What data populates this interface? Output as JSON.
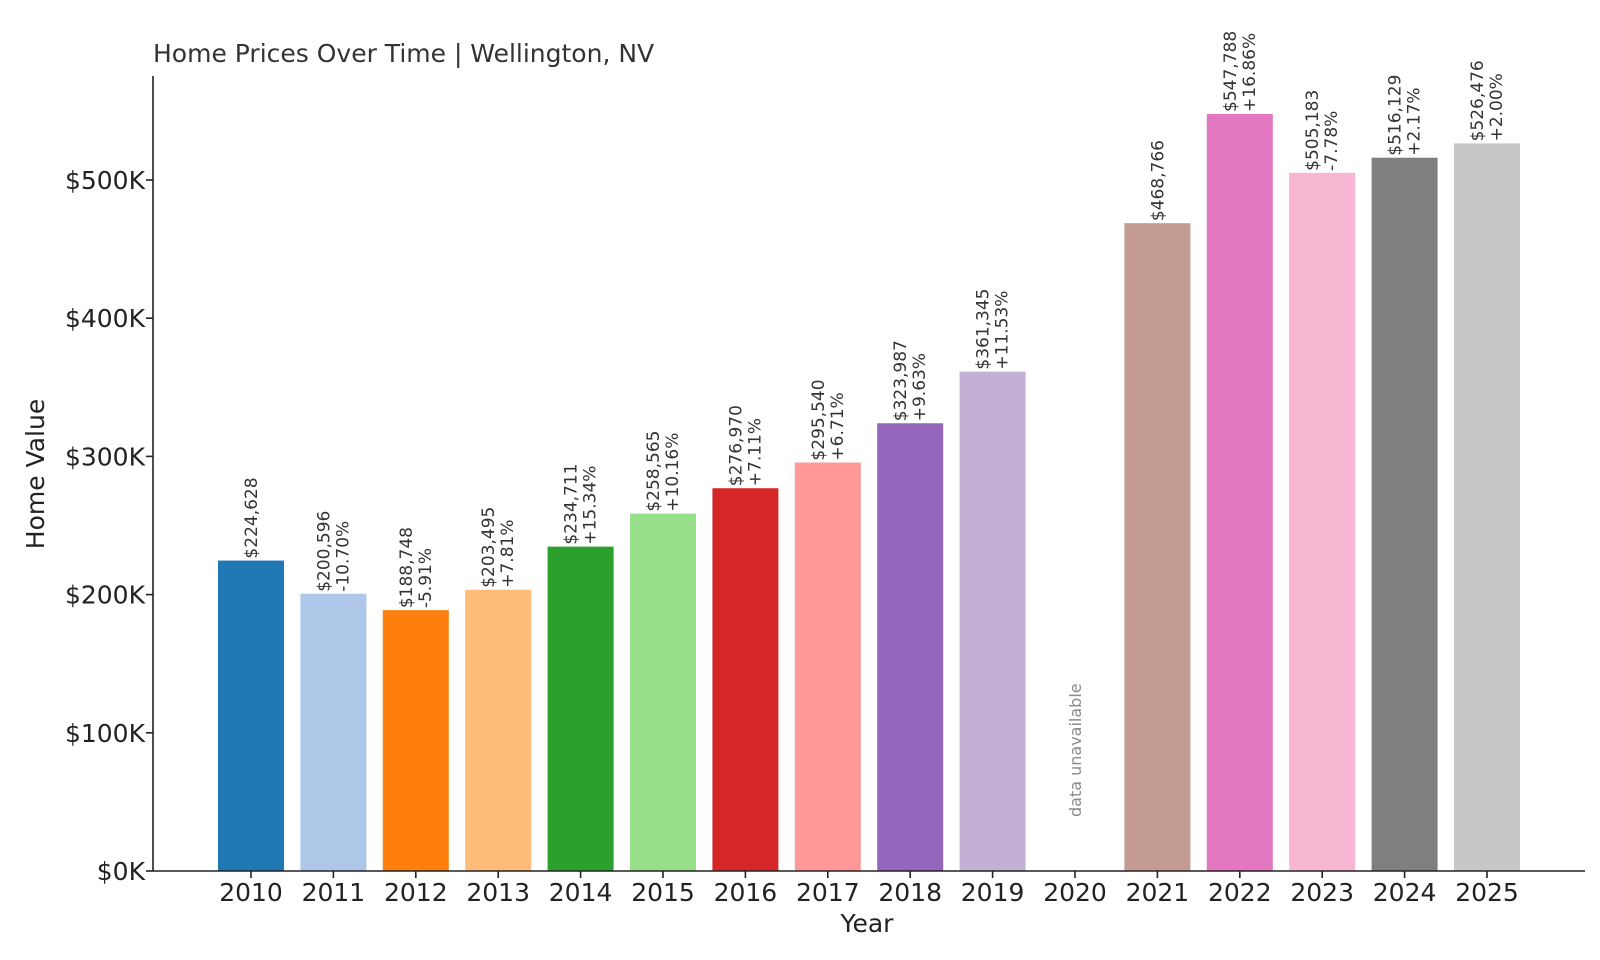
{
  "chart_data": {
    "type": "bar",
    "title": "Home Prices Over Time | Wellington, NV",
    "xlabel": "Year",
    "ylabel": "Home Value",
    "ylim": [
      0,
      575000
    ],
    "yticks": [
      0,
      100000,
      200000,
      300000,
      400000,
      500000
    ],
    "ytick_labels": [
      "$0K",
      "$100K",
      "$200K",
      "$300K",
      "$400K",
      "$500K"
    ],
    "grid": false,
    "legend": "none",
    "categories": [
      "2010",
      "2011",
      "2012",
      "2013",
      "2014",
      "2015",
      "2016",
      "2017",
      "2018",
      "2019",
      "2020",
      "2021",
      "2022",
      "2023",
      "2024",
      "2025"
    ],
    "values": [
      224628,
      200596,
      188748,
      203495,
      234711,
      258565,
      276970,
      295540,
      323987,
      361345,
      null,
      468766,
      547788,
      505183,
      516129,
      526476
    ],
    "value_labels": [
      "$224,628",
      "$200,596",
      "$188,748",
      "$203,495",
      "$234,711",
      "$258,565",
      "$276,970",
      "$295,540",
      "$323,987",
      "$361,345",
      "",
      "$468,766",
      "$547,788",
      "$505,183",
      "$516,129",
      "$526,476"
    ],
    "change_labels": [
      "",
      "-10.70%",
      "-5.91%",
      "+7.81%",
      "+15.34%",
      "+10.16%",
      "+7.11%",
      "+6.71%",
      "+9.63%",
      "+11.53%",
      "",
      "",
      "+16.86%",
      "-7.78%",
      "+2.17%",
      "+2.00%"
    ],
    "missing_label": "data unavailable",
    "colors": [
      "#1f77b4",
      "#aec7e8",
      "#ff7f0e",
      "#ffbb78",
      "#2ca02c",
      "#98df8a",
      "#d62728",
      "#ff9896",
      "#9467bd",
      "#c5b0d5",
      "#8c564b",
      "#c49c94",
      "#e377c2",
      "#f7b6d2",
      "#7f7f7f",
      "#c7c7c7"
    ]
  }
}
